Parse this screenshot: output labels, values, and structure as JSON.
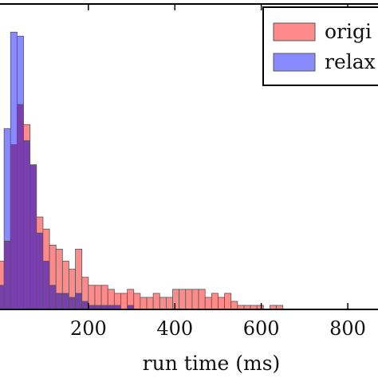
{
  "chart_data": {
    "type": "bar",
    "subtype": "overlapping-histogram",
    "title": "",
    "xlabel": "run time (ms)",
    "ylabel": "",
    "xlim": [
      -10,
      870
    ],
    "ylim": [
      0,
      380
    ],
    "bin_width": 15,
    "x_start": -10,
    "x_ticks": [
      200,
      400,
      600,
      800
    ],
    "x_tick_labels": [
      "200",
      "400",
      "600",
      "800"
    ],
    "grid": false,
    "legend_position": "top-right",
    "colors": {
      "original": "#ff8a8a",
      "relaxed": "#8a8aff",
      "overlap": "#7a3fae",
      "edge": "#555555"
    },
    "series": [
      {
        "name": "original",
        "legend_label": "origi",
        "counts": [
          60,
          85,
          205,
          255,
          230,
          180,
          115,
          100,
          80,
          75,
          60,
          50,
          75,
          40,
          30,
          30,
          30,
          25,
          20,
          20,
          25,
          20,
          15,
          15,
          20,
          15,
          15,
          25,
          25,
          25,
          25,
          25,
          15,
          20,
          15,
          20,
          10,
          5,
          5,
          5,
          5,
          0,
          5,
          5,
          0,
          0,
          0,
          0,
          0,
          0,
          0,
          0,
          0,
          0,
          0,
          0,
          0,
          0,
          0
        ]
      },
      {
        "name": "relaxed",
        "legend_label": "relax",
        "counts": [
          30,
          225,
          345,
          340,
          210,
          180,
          95,
          60,
          30,
          20,
          20,
          15,
          20,
          10,
          5,
          5,
          5,
          5,
          5,
          0,
          5,
          0,
          0,
          0,
          0,
          0,
          0,
          0,
          0,
          0,
          0,
          0,
          0,
          0,
          0,
          0,
          0,
          0,
          0,
          0,
          0,
          0,
          0,
          0,
          0,
          0,
          0,
          0,
          0,
          0,
          0,
          0,
          0,
          0,
          0,
          0,
          0,
          0,
          0
        ]
      }
    ]
  }
}
